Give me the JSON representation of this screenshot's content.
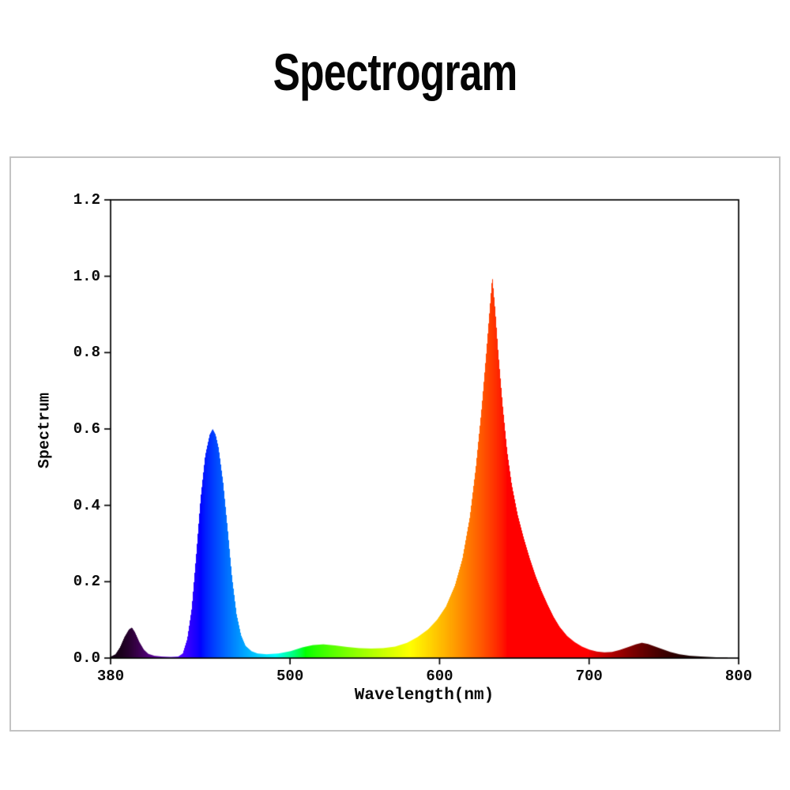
{
  "title": "Spectrogram",
  "chart_data": {
    "type": "area",
    "title": "Spectrogram",
    "xlabel": "Wavelength(nm)",
    "ylabel": "Spectrum",
    "xlim": [
      380,
      800
    ],
    "ylim": [
      0.0,
      1.2
    ],
    "grid": false,
    "legend": "none",
    "color_mode": "fill colored by visible-light wavelength (violet through far-red)",
    "x_ticks": [
      {
        "value": 380,
        "label": "380"
      },
      {
        "value": 500,
        "label": "500"
      },
      {
        "value": 600,
        "label": "600"
      },
      {
        "value": 700,
        "label": "700"
      },
      {
        "value": 800,
        "label": "800"
      }
    ],
    "y_ticks": [
      {
        "value": 0.0,
        "label": "0.0"
      },
      {
        "value": 0.2,
        "label": "0.2"
      },
      {
        "value": 0.4,
        "label": "0.4"
      },
      {
        "value": 0.6,
        "label": "0.6"
      },
      {
        "value": 0.8,
        "label": "0.8"
      },
      {
        "value": 1.0,
        "label": "1.0"
      },
      {
        "value": 1.2,
        "label": "1.2"
      }
    ],
    "peaks": [
      {
        "wavelength": 393,
        "intensity": 0.08,
        "appearance": "dark violet"
      },
      {
        "wavelength": 448,
        "intensity": 0.6,
        "appearance": "blue"
      },
      {
        "wavelength": 635,
        "intensity": 1.0,
        "appearance": "red"
      },
      {
        "wavelength": 735,
        "intensity": 0.04,
        "appearance": "dark far-red"
      }
    ],
    "series": [
      {
        "name": "spectrum",
        "points": [
          [
            380,
            0.004
          ],
          [
            383,
            0.01
          ],
          [
            386,
            0.028
          ],
          [
            389,
            0.055
          ],
          [
            392,
            0.075
          ],
          [
            394,
            0.08
          ],
          [
            396,
            0.068
          ],
          [
            399,
            0.042
          ],
          [
            402,
            0.022
          ],
          [
            405,
            0.011
          ],
          [
            409,
            0.006
          ],
          [
            414,
            0.004
          ],
          [
            420,
            0.003
          ],
          [
            425,
            0.004
          ],
          [
            428,
            0.012
          ],
          [
            431,
            0.05
          ],
          [
            434,
            0.13
          ],
          [
            437,
            0.27
          ],
          [
            440,
            0.42
          ],
          [
            443,
            0.53
          ],
          [
            446,
            0.585
          ],
          [
            448,
            0.6
          ],
          [
            450,
            0.585
          ],
          [
            452,
            0.55
          ],
          [
            455,
            0.46
          ],
          [
            458,
            0.34
          ],
          [
            461,
            0.21
          ],
          [
            464,
            0.115
          ],
          [
            467,
            0.06
          ],
          [
            470,
            0.032
          ],
          [
            474,
            0.018
          ],
          [
            478,
            0.012
          ],
          [
            484,
            0.01
          ],
          [
            492,
            0.012
          ],
          [
            500,
            0.018
          ],
          [
            508,
            0.028
          ],
          [
            515,
            0.034
          ],
          [
            522,
            0.036
          ],
          [
            530,
            0.033
          ],
          [
            538,
            0.029
          ],
          [
            546,
            0.026
          ],
          [
            554,
            0.025
          ],
          [
            562,
            0.026
          ],
          [
            570,
            0.03
          ],
          [
            578,
            0.04
          ],
          [
            585,
            0.055
          ],
          [
            592,
            0.075
          ],
          [
            598,
            0.1
          ],
          [
            604,
            0.135
          ],
          [
            610,
            0.19
          ],
          [
            615,
            0.26
          ],
          [
            620,
            0.37
          ],
          [
            624,
            0.5
          ],
          [
            628,
            0.66
          ],
          [
            631,
            0.8
          ],
          [
            633,
            0.9
          ],
          [
            635,
            1.0
          ],
          [
            637,
            0.91
          ],
          [
            639,
            0.8
          ],
          [
            642,
            0.66
          ],
          [
            645,
            0.54
          ],
          [
            648,
            0.455
          ],
          [
            652,
            0.375
          ],
          [
            656,
            0.315
          ],
          [
            660,
            0.262
          ],
          [
            664,
            0.215
          ],
          [
            668,
            0.175
          ],
          [
            672,
            0.14
          ],
          [
            676,
            0.108
          ],
          [
            680,
            0.082
          ],
          [
            685,
            0.058
          ],
          [
            690,
            0.042
          ],
          [
            695,
            0.03
          ],
          [
            700,
            0.022
          ],
          [
            705,
            0.017
          ],
          [
            710,
            0.015
          ],
          [
            715,
            0.016
          ],
          [
            720,
            0.021
          ],
          [
            726,
            0.029
          ],
          [
            731,
            0.036
          ],
          [
            735,
            0.04
          ],
          [
            739,
            0.037
          ],
          [
            744,
            0.03
          ],
          [
            749,
            0.023
          ],
          [
            754,
            0.016
          ],
          [
            760,
            0.01
          ],
          [
            767,
            0.006
          ],
          [
            775,
            0.004
          ],
          [
            785,
            0.002
          ],
          [
            800,
            0.001
          ]
        ]
      }
    ]
  },
  "styles": {
    "background": "#ffffff",
    "panel_border": "#c3c3c3",
    "axis_color": "#000000",
    "title_color": "#050505"
  }
}
